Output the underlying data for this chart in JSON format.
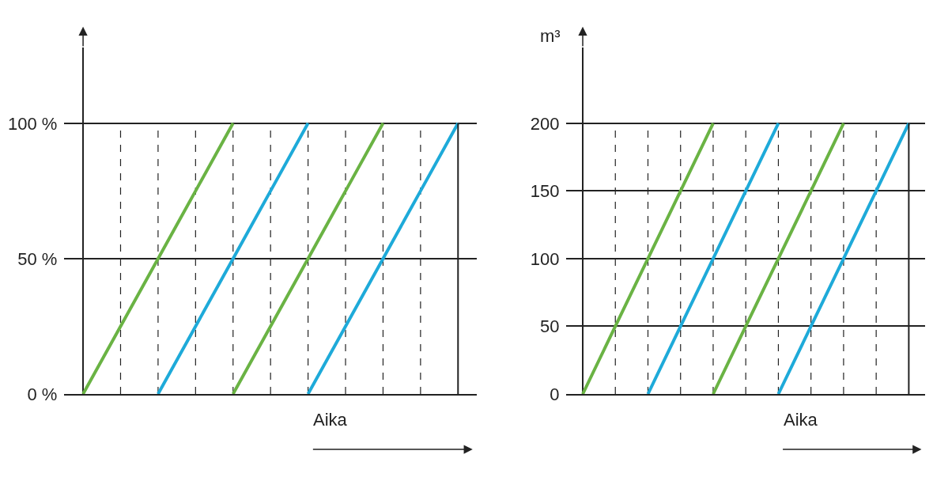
{
  "chart_data": [
    {
      "type": "line",
      "xlabel": "Aika",
      "categories": [
        null,
        null,
        null,
        null,
        null,
        null,
        null,
        null,
        null,
        null,
        null
      ],
      "series": [
        {
          "color": "#6ab344",
          "values": [
            0,
            25,
            50,
            75,
            100,
            null,
            null,
            null,
            null,
            null,
            null
          ]
        },
        {
          "color": "#1eaad9",
          "values": [
            null,
            null,
            0,
            25,
            50,
            75,
            100,
            null,
            null,
            null,
            null
          ]
        },
        {
          "color": "#6ab344",
          "values": [
            null,
            null,
            null,
            null,
            0,
            25,
            50,
            75,
            100,
            null,
            null
          ]
        },
        {
          "color": "#1eaad9",
          "values": [
            null,
            null,
            null,
            null,
            null,
            null,
            0,
            25,
            50,
            75,
            100
          ]
        }
      ],
      "ylim": [
        0,
        128
      ],
      "yticks": [
        {
          "value": 0,
          "label": "0 %"
        },
        {
          "value": 50,
          "label": "50 %"
        },
        {
          "value": 100,
          "label": "100 %"
        }
      ],
      "grid": true,
      "line_style": "solid",
      "marker": "none"
    },
    {
      "type": "line",
      "xlabel": "Aika",
      "ylabel": "m³",
      "categories": [
        null,
        null,
        null,
        null,
        null,
        null,
        null,
        null,
        null,
        null,
        null
      ],
      "series": [
        {
          "color": "#6ab344",
          "values": [
            0,
            50,
            100,
            150,
            200,
            null,
            null,
            null,
            null,
            null,
            null
          ]
        },
        {
          "color": "#1eaad9",
          "values": [
            null,
            null,
            0,
            50,
            100,
            150,
            200,
            null,
            null,
            null,
            null
          ]
        },
        {
          "color": "#6ab344",
          "values": [
            null,
            null,
            null,
            null,
            0,
            50,
            100,
            150,
            200,
            null,
            null
          ]
        },
        {
          "color": "#1eaad9",
          "values": [
            null,
            null,
            null,
            null,
            null,
            null,
            0,
            50,
            100,
            150,
            200
          ]
        }
      ],
      "ylim": [
        0,
        256
      ],
      "yticks": [
        0,
        50,
        100,
        150,
        200
      ],
      "grid": true,
      "line_style": "solid",
      "marker": "none"
    }
  ]
}
